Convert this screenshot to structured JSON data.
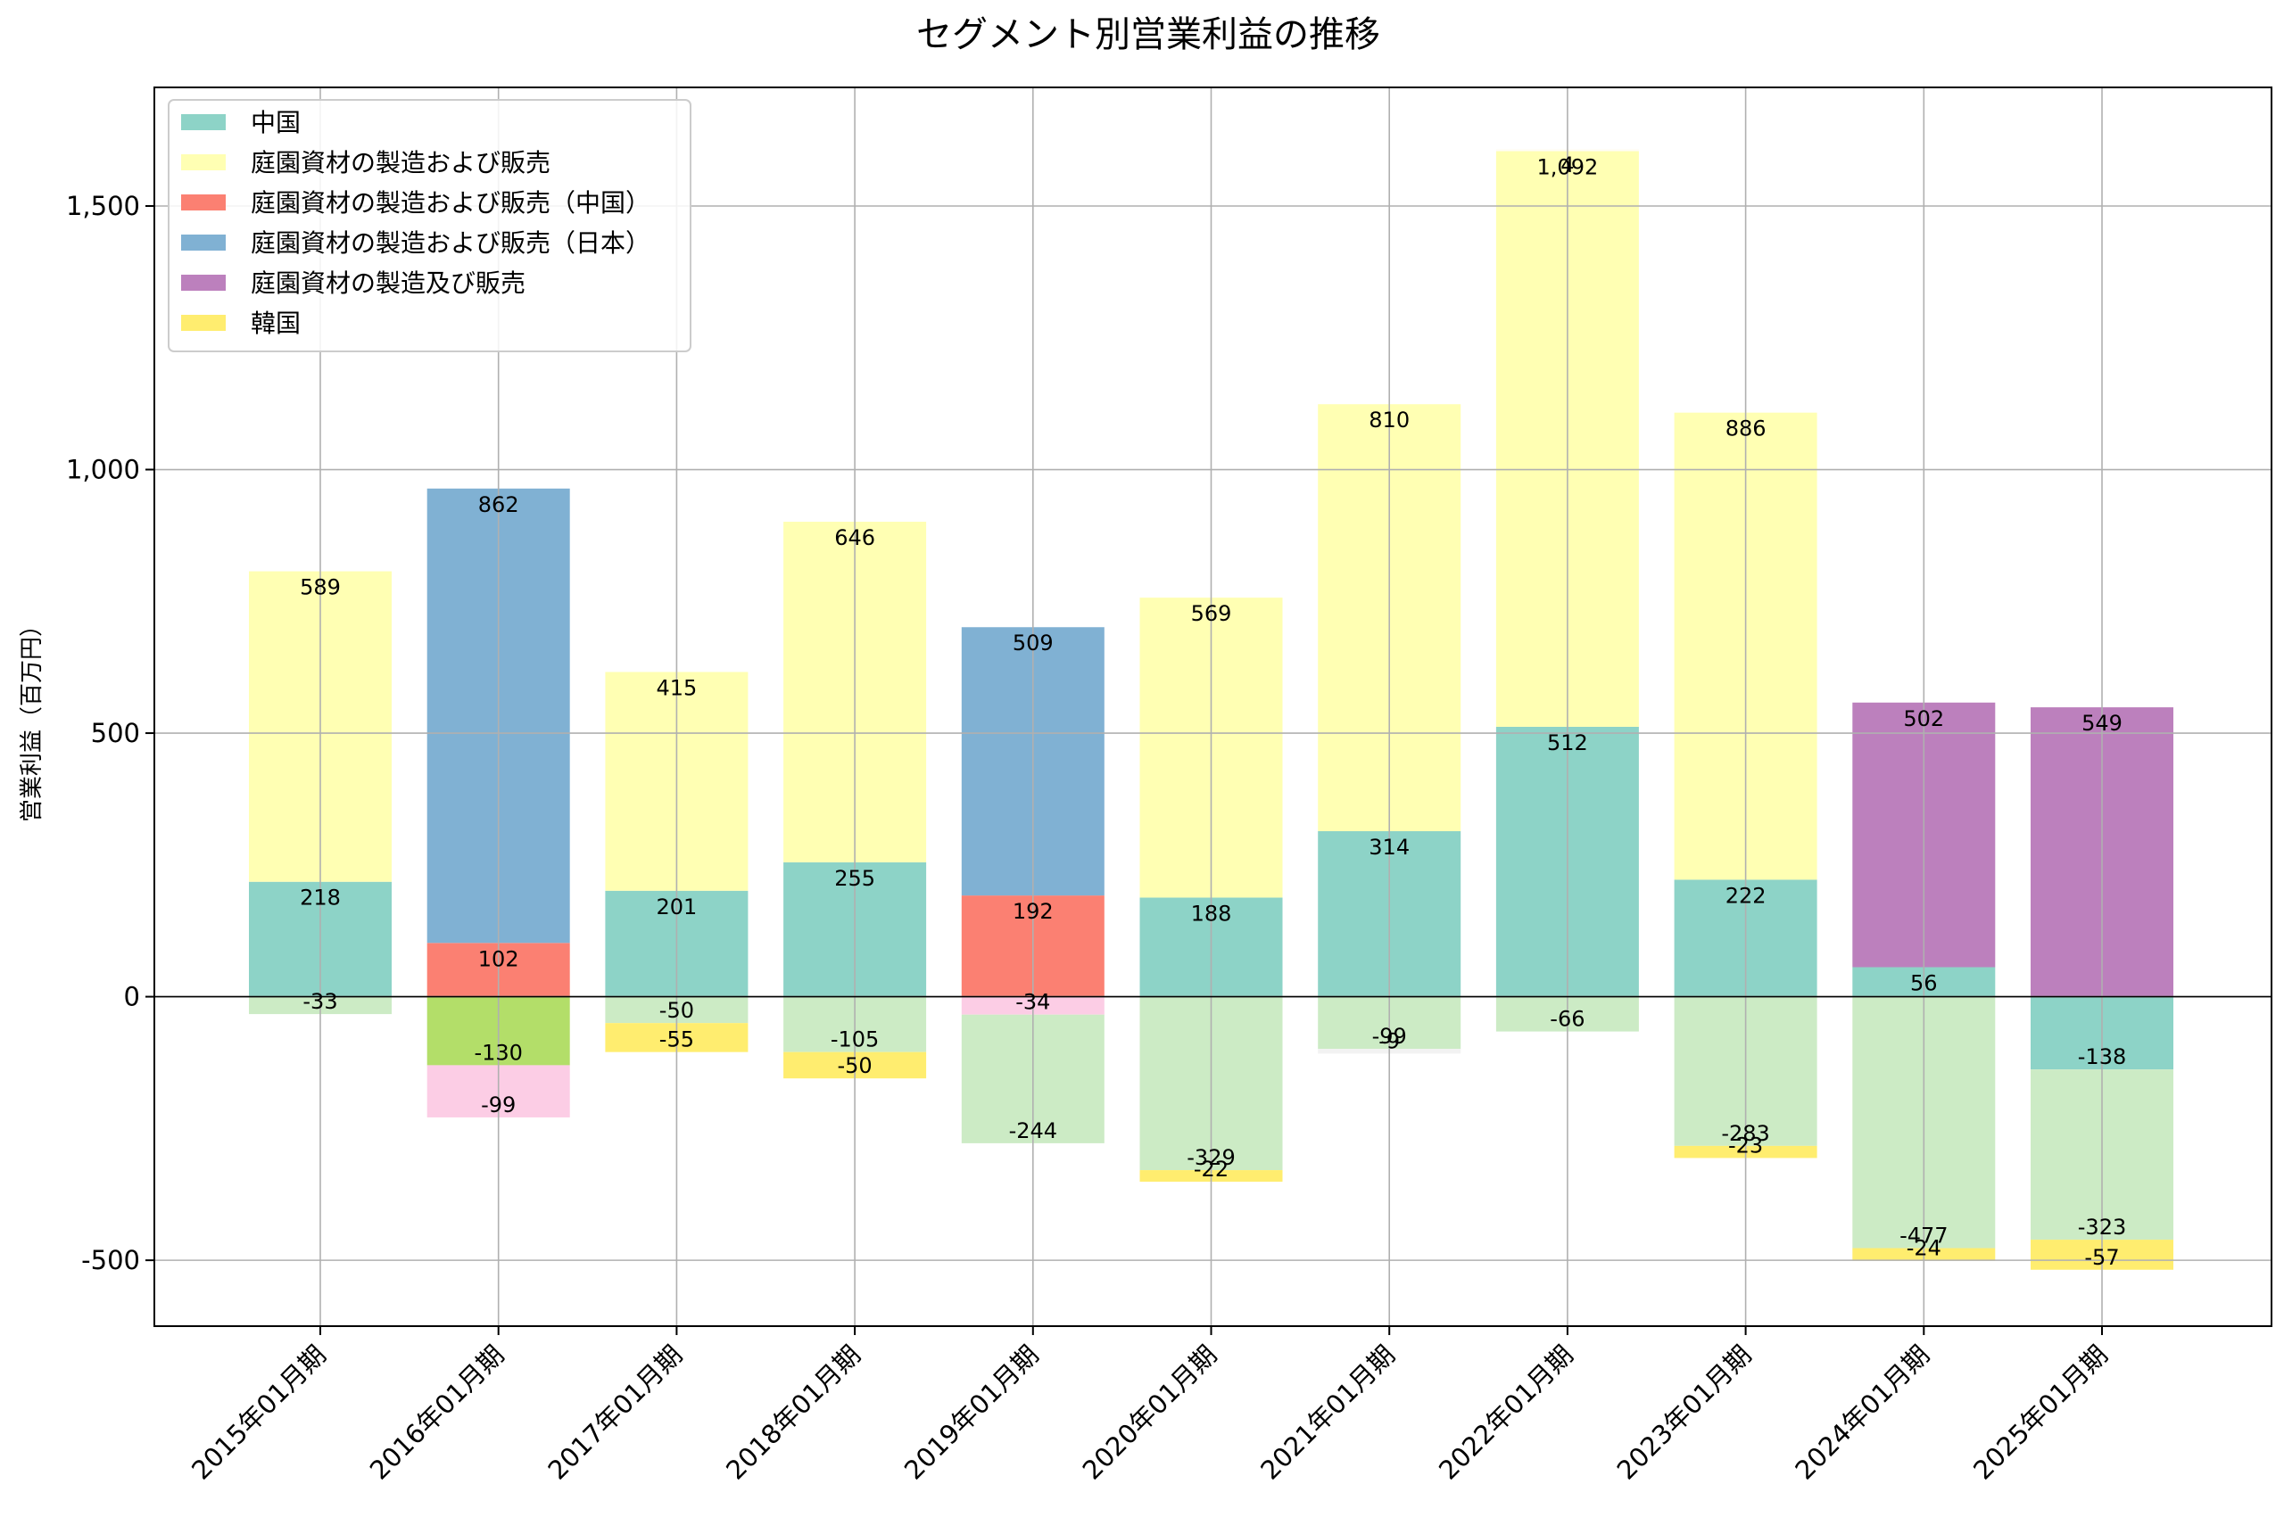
{
  "chart_data": {
    "type": "bar",
    "stacked": true,
    "title": "セグメント別営業利益の推移",
    "xlabel": "",
    "ylabel": "営業利益（百万円）",
    "ylim": [
      -625,
      1725
    ],
    "yticks": [
      -500,
      0,
      500,
      1000,
      1500
    ],
    "ytick_labels": [
      "-500",
      "0",
      "500",
      "1,000",
      "1,500"
    ],
    "grid": true,
    "legend_position": "top-left",
    "categories": [
      "2015年01月期",
      "2016年01月期",
      "2017年01月期",
      "2018年01月期",
      "2019年01月期",
      "2020年01月期",
      "2021年01月期",
      "2022年01月期",
      "2023年01月期",
      "2024年01月期",
      "2025年01月期"
    ],
    "series": [
      {
        "name": "中国",
        "color": "#8dd3c7",
        "in_legend": true,
        "values": [
          218,
          null,
          201,
          255,
          null,
          188,
          314,
          512,
          222,
          56,
          -138
        ]
      },
      {
        "name": "庭園資材の製造および販売",
        "color": "#ffffb3",
        "in_legend": true,
        "values": [
          589,
          null,
          415,
          646,
          null,
          569,
          810,
          1092,
          886,
          null,
          null
        ]
      },
      {
        "name": "庭園資材の製造および販売（中国）",
        "color": "#fb8072",
        "in_legend": true,
        "values": [
          null,
          102,
          null,
          null,
          192,
          null,
          null,
          null,
          null,
          null,
          null
        ]
      },
      {
        "name": "庭園資材の製造および販売（日本）",
        "color": "#80b1d3",
        "in_legend": true,
        "values": [
          null,
          862,
          null,
          null,
          509,
          null,
          null,
          null,
          null,
          null,
          null
        ]
      },
      {
        "name": "庭園資材の製造及び販売",
        "color": "#bc80bd",
        "in_legend": true,
        "values": [
          null,
          null,
          null,
          null,
          null,
          null,
          null,
          null,
          null,
          502,
          549
        ]
      },
      {
        "name": "",
        "color": "#b3de69",
        "in_legend": false,
        "values": [
          null,
          -130,
          null,
          null,
          null,
          null,
          null,
          null,
          null,
          null,
          null
        ]
      },
      {
        "name": "",
        "color": "#fccde5",
        "in_legend": false,
        "values": [
          null,
          -99,
          null,
          null,
          -34,
          null,
          null,
          null,
          null,
          null,
          null
        ]
      },
      {
        "name": "",
        "color": "#ccebc5",
        "in_legend": false,
        "values": [
          -33,
          null,
          -50,
          -105,
          -244,
          -329,
          -99,
          -66,
          -283,
          -477,
          -323
        ]
      },
      {
        "name": "",
        "color": "#fffdf5",
        "in_legend": false,
        "values": [
          null,
          null,
          null,
          null,
          null,
          null,
          null,
          4,
          null,
          null,
          null
        ]
      },
      {
        "name": "",
        "color": "#f2f2f2",
        "in_legend": false,
        "values": [
          null,
          null,
          null,
          null,
          null,
          null,
          -9,
          null,
          null,
          null,
          null
        ]
      },
      {
        "name": "韓国",
        "color": "#ffed6f",
        "in_legend": true,
        "values": [
          null,
          null,
          -55,
          -50,
          null,
          -22,
          null,
          null,
          -23,
          -24,
          -57
        ]
      }
    ]
  }
}
